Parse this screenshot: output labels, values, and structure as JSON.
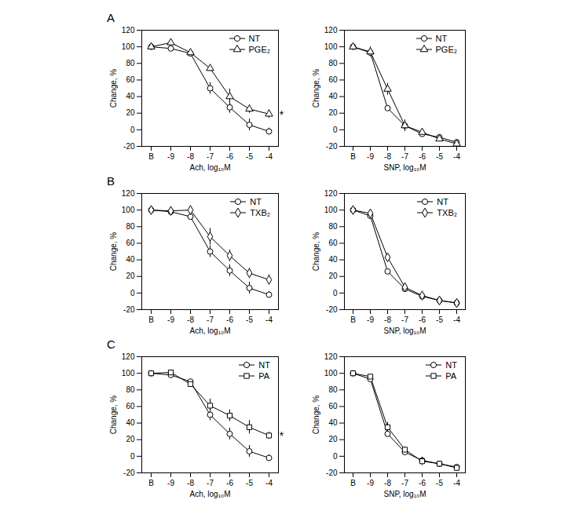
{
  "chart_data": [
    {
      "type": "line",
      "title": "A",
      "x_label": "Ach, log₁₀M",
      "y_label": "Change, %",
      "categories": [
        "B",
        "-9",
        "-8",
        "-7",
        "-6",
        "-5",
        "-4"
      ],
      "series": [
        {
          "name": "NT",
          "color": "#000000",
          "marker": "circle",
          "values": [
            100,
            98,
            92,
            50,
            27,
            6,
            -2
          ],
          "errors": [
            1,
            3,
            3,
            7,
            7,
            7,
            4
          ]
        },
        {
          "name": "PGE₂",
          "color": "#000000",
          "marker": "triangle",
          "values": [
            100,
            105,
            93,
            74,
            40,
            25,
            19
          ],
          "errors": [
            2,
            3,
            3,
            3,
            9,
            5,
            5
          ]
        }
      ],
      "ylim": [
        -20,
        120
      ],
      "yticks": [
        -20,
        0,
        20,
        40,
        60,
        80,
        100,
        120
      ],
      "legend": "upper right",
      "annotations": [
        {
          "text": "*",
          "x": "-4",
          "y": 18
        }
      ]
    },
    {
      "type": "line",
      "x_label": "SNP, log₁₀M",
      "y_label": "Change, %",
      "categories": [
        "B",
        "-9",
        "-8",
        "-7",
        "-6",
        "-5",
        "-4"
      ],
      "series": [
        {
          "name": "NT",
          "color": "#000000",
          "marker": "circle",
          "values": [
            100,
            93,
            26,
            5,
            -5,
            -9,
            -15
          ],
          "errors": [
            1,
            2,
            3,
            3,
            2,
            2,
            3
          ]
        },
        {
          "name": "PGE₂",
          "color": "#000000",
          "marker": "triangle",
          "values": [
            100,
            94,
            49,
            5,
            -3,
            -11,
            -17
          ],
          "errors": [
            1,
            6,
            7,
            7,
            2,
            2,
            3
          ]
        }
      ],
      "ylim": [
        -20,
        120
      ],
      "yticks": [
        -20,
        0,
        20,
        40,
        60,
        80,
        100,
        120
      ],
      "legend": "upper right"
    },
    {
      "type": "line",
      "title": "B",
      "x_label": "Ach, log₁₀M",
      "y_label": "Change, %",
      "categories": [
        "B",
        "-9",
        "-8",
        "-7",
        "-6",
        "-5",
        "-4"
      ],
      "series": [
        {
          "name": "NT",
          "color": "#000000",
          "marker": "circle",
          "values": [
            100,
            98,
            92,
            50,
            27,
            6,
            -2
          ],
          "errors": [
            1,
            3,
            3,
            7,
            7,
            7,
            4
          ]
        },
        {
          "name": "TXB₂",
          "color": "#000000",
          "marker": "diamond",
          "values": [
            100,
            99,
            100,
            68,
            45,
            24,
            16
          ],
          "errors": [
            2,
            2,
            3,
            10,
            7,
            6,
            6
          ]
        }
      ],
      "ylim": [
        -20,
        120
      ],
      "yticks": [
        -20,
        0,
        20,
        40,
        60,
        80,
        100,
        120
      ],
      "legend": "upper right"
    },
    {
      "type": "line",
      "x_label": "SNP, log₁₀M",
      "y_label": "Change, %",
      "categories": [
        "B",
        "-9",
        "-8",
        "-7",
        "-6",
        "-5",
        "-4"
      ],
      "series": [
        {
          "name": "NT",
          "color": "#000000",
          "marker": "circle",
          "values": [
            100,
            93,
            26,
            5,
            -4,
            -9,
            -12
          ],
          "errors": [
            1,
            2,
            3,
            3,
            2,
            2,
            2
          ]
        },
        {
          "name": "TXB₂",
          "color": "#000000",
          "marker": "diamond",
          "values": [
            100,
            96,
            43,
            7,
            -3,
            -9,
            -12
          ],
          "errors": [
            1,
            1,
            5,
            2,
            2,
            2,
            2
          ]
        }
      ],
      "ylim": [
        -20,
        120
      ],
      "yticks": [
        -20,
        0,
        20,
        40,
        60,
        80,
        100,
        120
      ],
      "legend": "upper right"
    },
    {
      "type": "line",
      "title": "C",
      "x_label": "Ach, log₁₀M",
      "y_label": "Change, %",
      "categories": [
        "B",
        "-9",
        "-8",
        "-7",
        "-6",
        "-5",
        "-4"
      ],
      "series": [
        {
          "name": "NT",
          "color": "#000000",
          "marker": "circle",
          "values": [
            100,
            98,
            90,
            50,
            27,
            6,
            -2
          ],
          "errors": [
            1,
            3,
            3,
            7,
            7,
            7,
            4
          ]
        },
        {
          "name": "PA",
          "color": "#000000",
          "marker": "square",
          "values": [
            100,
            101,
            87,
            61,
            49,
            35,
            25
          ],
          "errors": [
            2,
            2,
            3,
            8,
            7,
            8,
            4
          ]
        }
      ],
      "ylim": [
        -20,
        120
      ],
      "yticks": [
        -20,
        0,
        20,
        40,
        60,
        80,
        100,
        120
      ],
      "legend": "upper right",
      "annotations": [
        {
          "text": "*",
          "x": "-4",
          "y": 24
        }
      ]
    },
    {
      "type": "line",
      "x_label": "SNP, log₁₀M",
      "y_label": "Change, %",
      "categories": [
        "B",
        "-9",
        "-8",
        "-7",
        "-6",
        "-5",
        "-4"
      ],
      "series": [
        {
          "name": "NT",
          "color": "#000000",
          "marker": "circle",
          "values": [
            100,
            93,
            27,
            5,
            -5,
            -9,
            -13
          ],
          "errors": [
            1,
            1,
            3,
            3,
            2,
            2,
            3
          ]
        },
        {
          "name": "PA",
          "color": "#000000",
          "marker": "square",
          "values": [
            100,
            96,
            35,
            8,
            -6,
            -9,
            -14
          ],
          "errors": [
            1,
            1,
            6,
            3,
            5,
            3,
            4
          ]
        }
      ],
      "ylim": [
        -20,
        120
      ],
      "yticks": [
        -20,
        0,
        20,
        40,
        60,
        80,
        100,
        120
      ],
      "legend": "upper right"
    }
  ]
}
